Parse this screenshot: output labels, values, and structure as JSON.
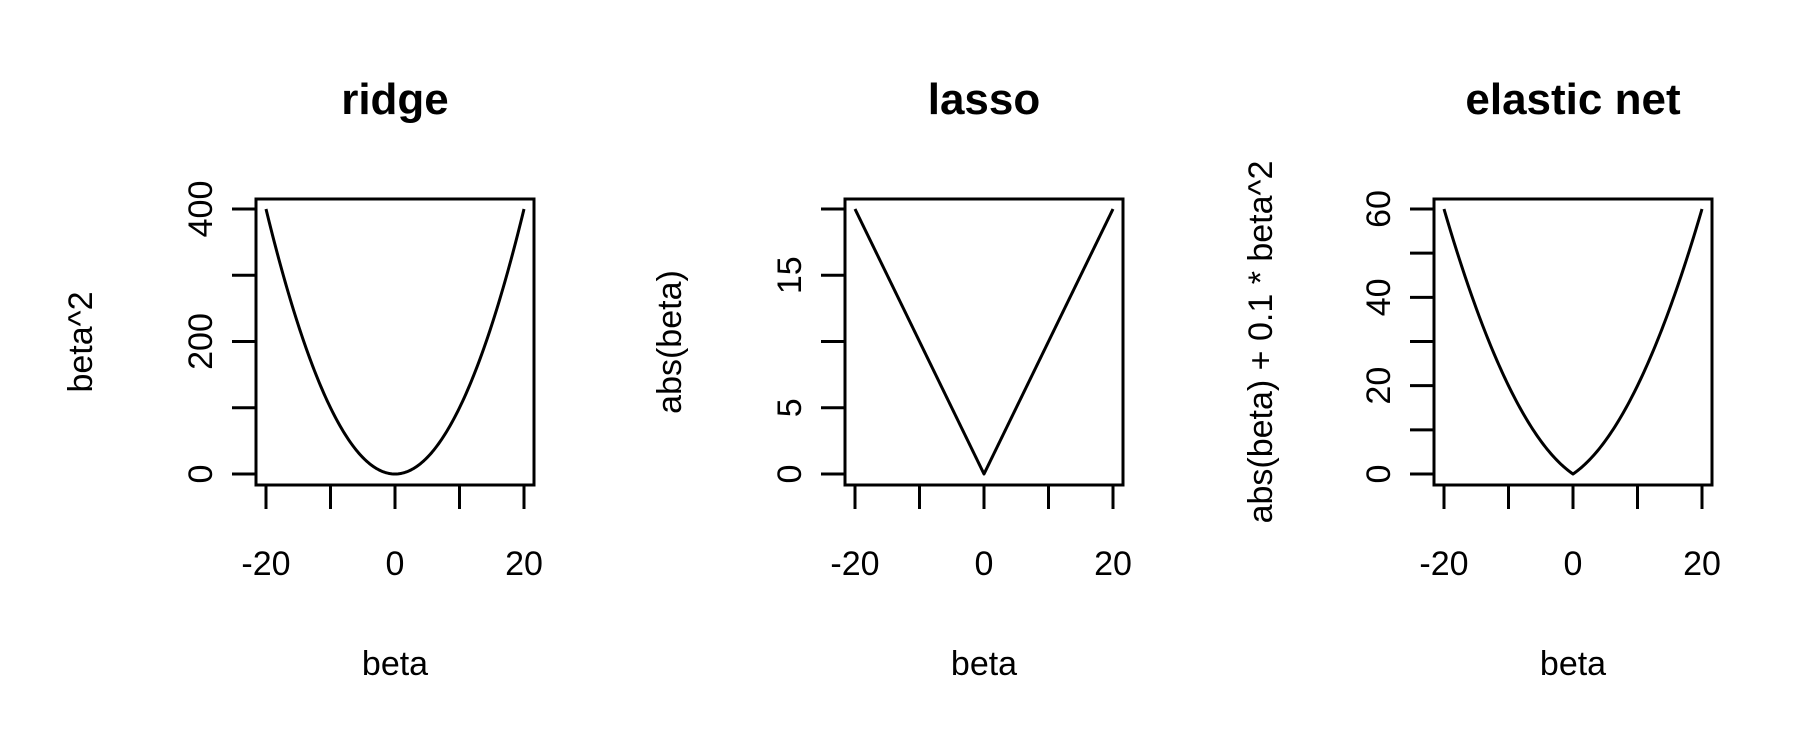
{
  "chart_data": [
    {
      "type": "line",
      "title": "ridge",
      "xlabel": "beta",
      "ylabel": "beta^2",
      "xlim": [
        -20,
        20
      ],
      "ylim": [
        0,
        400
      ],
      "x_ticks": [
        -20,
        -10,
        0,
        10,
        20
      ],
      "x_tick_labels": [
        "-20",
        "",
        "0",
        "",
        "20"
      ],
      "y_ticks": [
        0,
        100,
        200,
        300,
        400
      ],
      "y_tick_labels": [
        "0",
        "",
        "200",
        "",
        "400"
      ],
      "function": "beta^2",
      "series": [
        {
          "x": [
            -20,
            -18,
            -16,
            -14,
            -12,
            -10,
            -8,
            -6,
            -4,
            -2,
            0,
            2,
            4,
            6,
            8,
            10,
            12,
            14,
            16,
            18,
            20
          ],
          "y": [
            400,
            324,
            256,
            196,
            144,
            100,
            64,
            36,
            16,
            4,
            0,
            4,
            16,
            36,
            64,
            100,
            144,
            196,
            256,
            324,
            400
          ]
        }
      ]
    },
    {
      "type": "line",
      "title": "lasso",
      "xlabel": "beta",
      "ylabel": "abs(beta)",
      "xlim": [
        -20,
        20
      ],
      "ylim": [
        0,
        20
      ],
      "x_ticks": [
        -20,
        -10,
        0,
        10,
        20
      ],
      "x_tick_labels": [
        "-20",
        "",
        "0",
        "",
        "20"
      ],
      "y_ticks": [
        0,
        5,
        10,
        15,
        20
      ],
      "y_tick_labels": [
        "0",
        "5",
        "",
        "15",
        ""
      ],
      "function": "abs(beta)",
      "series": [
        {
          "x": [
            -20,
            -18,
            -16,
            -14,
            -12,
            -10,
            -8,
            -6,
            -4,
            -2,
            0,
            2,
            4,
            6,
            8,
            10,
            12,
            14,
            16,
            18,
            20
          ],
          "y": [
            20,
            18,
            16,
            14,
            12,
            10,
            8,
            6,
            4,
            2,
            0,
            2,
            4,
            6,
            8,
            10,
            12,
            14,
            16,
            18,
            20
          ]
        }
      ]
    },
    {
      "type": "line",
      "title": "elastic net",
      "xlabel": "beta",
      "ylabel": "abs(beta) + 0.1 * beta^2",
      "xlim": [
        -20,
        20
      ],
      "ylim": [
        0,
        60
      ],
      "x_ticks": [
        -20,
        -10,
        0,
        10,
        20
      ],
      "x_tick_labels": [
        "-20",
        "",
        "0",
        "",
        "20"
      ],
      "y_ticks": [
        0,
        10,
        20,
        30,
        40,
        50,
        60
      ],
      "y_tick_labels": [
        "0",
        "",
        "20",
        "",
        "40",
        "",
        "60"
      ],
      "function": "abs(beta) + 0.1 * beta^2",
      "series": [
        {
          "x": [
            -20,
            -18,
            -16,
            -14,
            -12,
            -10,
            -8,
            -6,
            -4,
            -2,
            0,
            2,
            4,
            6,
            8,
            10,
            12,
            14,
            16,
            18,
            20
          ],
          "y": [
            60,
            50.4,
            41.6,
            33.6,
            26.4,
            20,
            14.4,
            9.6,
            5.6,
            2.4,
            0,
            2.4,
            5.6,
            9.6,
            14.4,
            20,
            26.4,
            33.6,
            41.6,
            50.4,
            60
          ]
        }
      ]
    }
  ]
}
